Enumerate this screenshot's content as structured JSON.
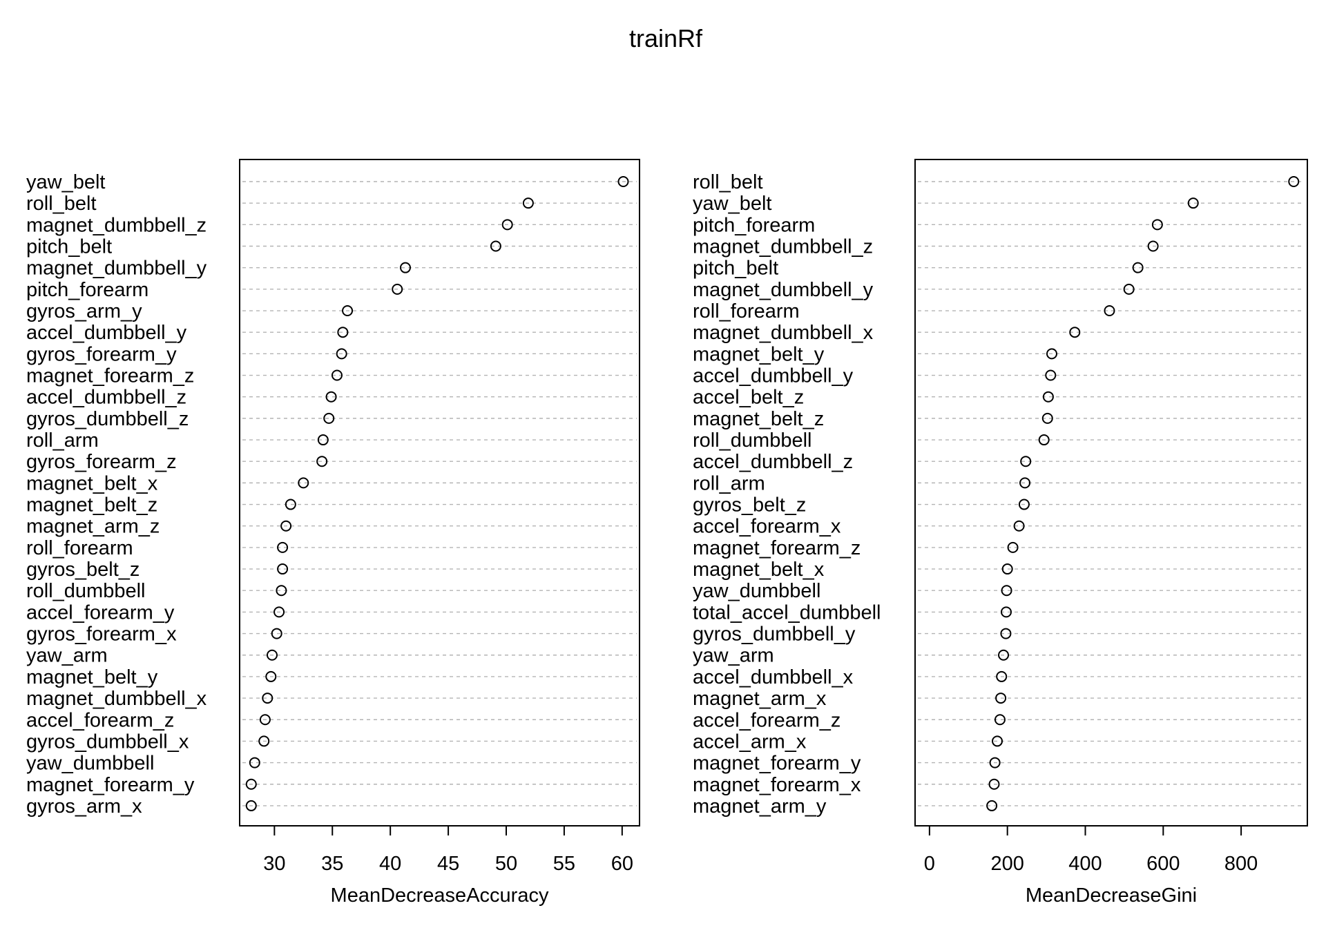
{
  "title": "trainRf",
  "chart_data": [
    {
      "type": "scatter",
      "subtype": "dotchart",
      "xlabel": "MeanDecreaseAccuracy",
      "ylabel": "",
      "xlim": [
        27,
        61.5
      ],
      "xticks": [
        30,
        35,
        40,
        45,
        50,
        55,
        60
      ],
      "grid": "horizontal dotted guides",
      "legend": "none",
      "categories": [
        "yaw_belt",
        "roll_belt",
        "magnet_dumbbell_z",
        "pitch_belt",
        "magnet_dumbbell_y",
        "pitch_forearm",
        "gyros_arm_y",
        "accel_dumbbell_y",
        "gyros_forearm_y",
        "magnet_forearm_z",
        "accel_dumbbell_z",
        "gyros_dumbbell_z",
        "roll_arm",
        "gyros_forearm_z",
        "magnet_belt_x",
        "magnet_belt_z",
        "magnet_arm_z",
        "roll_forearm",
        "gyros_belt_z",
        "roll_dumbbell",
        "accel_forearm_y",
        "gyros_forearm_x",
        "yaw_arm",
        "magnet_belt_y",
        "magnet_dumbbell_x",
        "accel_forearm_z",
        "gyros_dumbbell_x",
        "yaw_dumbbell",
        "magnet_forearm_y",
        "gyros_arm_x"
      ],
      "values": [
        60.1,
        51.9,
        50.1,
        49.1,
        41.3,
        40.6,
        36.3,
        35.9,
        35.8,
        35.4,
        34.9,
        34.7,
        34.2,
        34.1,
        32.5,
        31.4,
        31.0,
        30.7,
        30.7,
        30.6,
        30.4,
        30.2,
        29.8,
        29.7,
        29.4,
        29.2,
        29.1,
        28.3,
        28.0,
        28.0
      ]
    },
    {
      "type": "scatter",
      "subtype": "dotchart",
      "xlabel": "MeanDecreaseGini",
      "ylabel": "",
      "xlim": [
        -37,
        970
      ],
      "xticks": [
        0,
        200,
        400,
        600,
        800
      ],
      "grid": "horizontal dotted guides",
      "legend": "none",
      "categories": [
        "roll_belt",
        "yaw_belt",
        "pitch_forearm",
        "magnet_dumbbell_z",
        "pitch_belt",
        "magnet_dumbbell_y",
        "roll_forearm",
        "magnet_dumbbell_x",
        "magnet_belt_y",
        "accel_dumbbell_y",
        "accel_belt_z",
        "magnet_belt_z",
        "roll_dumbbell",
        "accel_dumbbell_z",
        "roll_arm",
        "gyros_belt_z",
        "accel_forearm_x",
        "magnet_forearm_z",
        "magnet_belt_x",
        "yaw_dumbbell",
        "total_accel_dumbbell",
        "gyros_dumbbell_y",
        "yaw_arm",
        "accel_dumbbell_x",
        "magnet_arm_x",
        "accel_forearm_z",
        "accel_arm_x",
        "magnet_forearm_y",
        "magnet_forearm_x",
        "magnet_arm_y"
      ],
      "values": [
        935,
        677,
        585,
        574,
        535,
        512,
        462,
        373,
        314,
        311,
        305,
        303,
        294,
        247,
        245,
        243,
        230,
        214,
        200,
        198,
        197,
        196,
        190,
        185,
        183,
        181,
        174,
        168,
        166,
        160
      ]
    }
  ]
}
